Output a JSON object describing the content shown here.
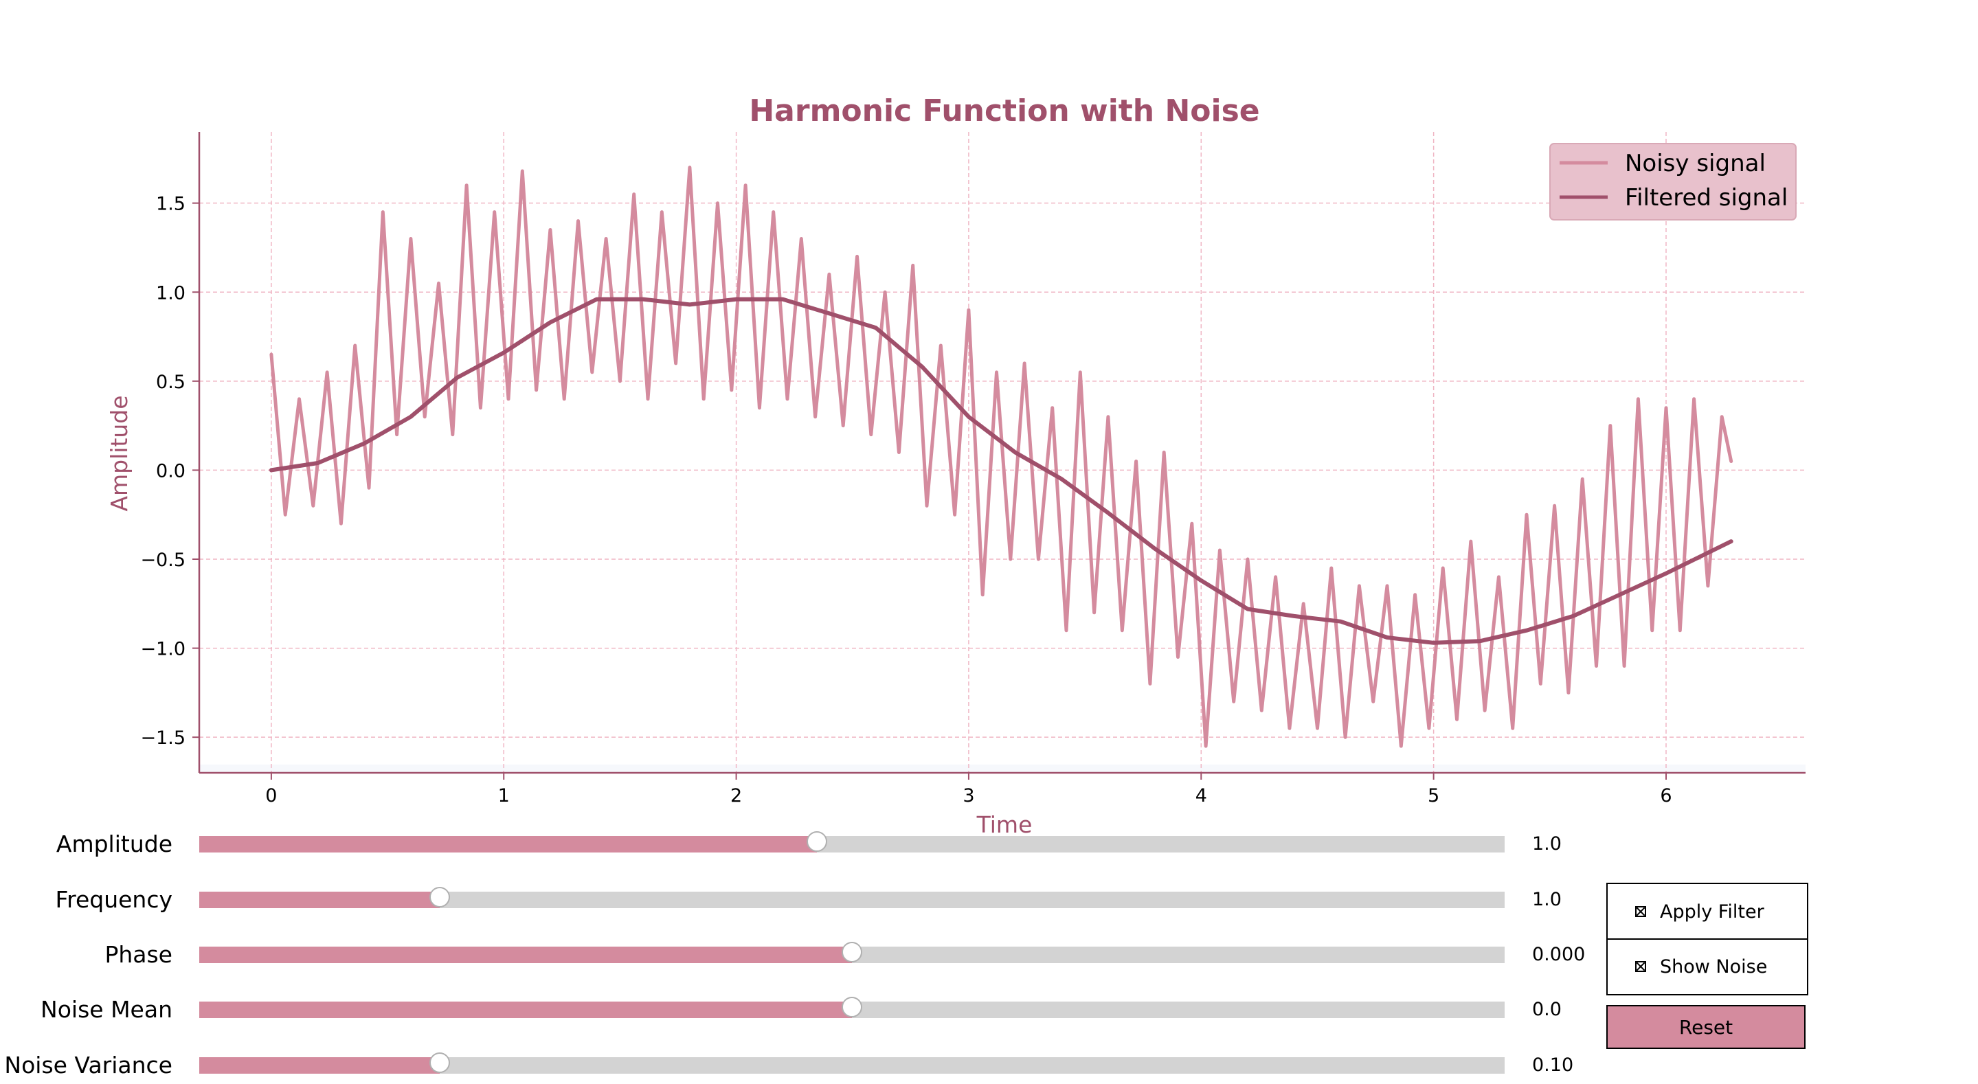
{
  "chart_data": {
    "type": "line",
    "title": "Harmonic Function with Noise",
    "xlabel": "Time",
    "ylabel": "Amplitude",
    "xlim": [
      -0.31,
      6.6
    ],
    "ylim": [
      -1.7,
      1.9
    ],
    "xticks": [
      0,
      1,
      2,
      3,
      4,
      5,
      6
    ],
    "xtick_labels": [
      "0",
      "1",
      "2",
      "3",
      "4",
      "5",
      "6"
    ],
    "yticks": [
      -1.5,
      -1.0,
      -0.5,
      0.0,
      0.5,
      1.0,
      1.5
    ],
    "ytick_labels": [
      "−1.5",
      "−1.0",
      "−0.5",
      "0.0",
      "0.5",
      "1.0",
      "1.5"
    ],
    "grid": true,
    "legend_position": "top-right",
    "series": [
      {
        "name": "Noisy signal",
        "color": "#d48b9e",
        "x": [
          0.0,
          0.06,
          0.12,
          0.18,
          0.24,
          0.3,
          0.36,
          0.42,
          0.48,
          0.54,
          0.6,
          0.66,
          0.72,
          0.78,
          0.84,
          0.9,
          0.96,
          1.02,
          1.08,
          1.14,
          1.2,
          1.26,
          1.32,
          1.38,
          1.44,
          1.5,
          1.56,
          1.62,
          1.68,
          1.74,
          1.8,
          1.86,
          1.92,
          1.98,
          2.04,
          2.1,
          2.16,
          2.22,
          2.28,
          2.34,
          2.4,
          2.46,
          2.52,
          2.58,
          2.64,
          2.7,
          2.76,
          2.82,
          2.88,
          2.94,
          3.0,
          3.06,
          3.12,
          3.18,
          3.24,
          3.3,
          3.36,
          3.42,
          3.48,
          3.54,
          3.6,
          3.66,
          3.72,
          3.78,
          3.84,
          3.9,
          3.96,
          4.02,
          4.08,
          4.14,
          4.2,
          4.26,
          4.32,
          4.38,
          4.44,
          4.5,
          4.56,
          4.62,
          4.68,
          4.74,
          4.8,
          4.86,
          4.92,
          4.98,
          5.04,
          5.1,
          5.16,
          5.22,
          5.28,
          5.34,
          5.4,
          5.46,
          5.52,
          5.58,
          5.64,
          5.7,
          5.76,
          5.82,
          5.88,
          5.94,
          6.0,
          6.06,
          6.12,
          6.18,
          6.24,
          6.28
        ],
        "y": [
          0.65,
          -0.25,
          0.4,
          -0.2,
          0.55,
          -0.3,
          0.7,
          -0.1,
          1.45,
          0.2,
          1.3,
          0.3,
          1.05,
          0.2,
          1.6,
          0.35,
          1.45,
          0.4,
          1.68,
          0.45,
          1.35,
          0.4,
          1.4,
          0.55,
          1.3,
          0.5,
          1.55,
          0.4,
          1.45,
          0.6,
          1.7,
          0.4,
          1.5,
          0.45,
          1.6,
          0.35,
          1.45,
          0.4,
          1.3,
          0.3,
          1.1,
          0.25,
          1.2,
          0.2,
          1.0,
          0.1,
          1.15,
          -0.2,
          0.7,
          -0.25,
          0.9,
          -0.7,
          0.55,
          -0.5,
          0.6,
          -0.5,
          0.35,
          -0.9,
          0.55,
          -0.8,
          0.3,
          -0.9,
          0.05,
          -1.2,
          0.1,
          -1.05,
          -0.3,
          -1.55,
          -0.45,
          -1.3,
          -0.5,
          -1.35,
          -0.6,
          -1.45,
          -0.75,
          -1.45,
          -0.55,
          -1.5,
          -0.65,
          -1.3,
          -0.65,
          -1.55,
          -0.7,
          -1.45,
          -0.55,
          -1.4,
          -0.4,
          -1.35,
          -0.6,
          -1.45,
          -0.25,
          -1.2,
          -0.2,
          -1.25,
          -0.05,
          -1.1,
          0.25,
          -1.1,
          0.4,
          -0.9,
          0.35,
          -0.9,
          0.4,
          -0.65,
          0.3,
          0.05
        ]
      },
      {
        "name": "Filtered signal",
        "color": "#a0506b",
        "x": [
          0.0,
          0.2,
          0.4,
          0.6,
          0.8,
          1.0,
          1.2,
          1.4,
          1.6,
          1.8,
          2.0,
          2.2,
          2.4,
          2.6,
          2.8,
          3.0,
          3.2,
          3.4,
          3.6,
          3.8,
          4.0,
          4.2,
          4.4,
          4.6,
          4.8,
          5.0,
          5.2,
          5.4,
          5.6,
          5.8,
          6.0,
          6.28
        ],
        "y": [
          0.0,
          0.04,
          0.15,
          0.3,
          0.52,
          0.66,
          0.83,
          0.96,
          0.96,
          0.93,
          0.96,
          0.96,
          0.88,
          0.8,
          0.58,
          0.3,
          0.1,
          -0.05,
          -0.24,
          -0.44,
          -0.62,
          -0.78,
          -0.82,
          -0.85,
          -0.94,
          -0.97,
          -0.96,
          -0.9,
          -0.82,
          -0.7,
          -0.58,
          -0.4
        ]
      }
    ]
  },
  "controls": {
    "sliders": [
      {
        "label": "Amplitude",
        "value_text": "1.0",
        "fraction": 0.473
      },
      {
        "label": "Frequency",
        "value_text": "1.0",
        "fraction": 0.184
      },
      {
        "label": "Phase",
        "value_text": "0.000",
        "fraction": 0.5
      },
      {
        "label": "Noise Mean",
        "value_text": "0.0",
        "fraction": 0.5
      },
      {
        "label": "Noise Variance",
        "value_text": "0.10",
        "fraction": 0.184
      }
    ],
    "checkboxes": [
      {
        "label": "Apply Filter",
        "checked": true
      },
      {
        "label": "Show Noise",
        "checked": true
      }
    ],
    "reset_label": "Reset"
  },
  "colors": {
    "accent": "#a0506b",
    "noisy": "#d48b9e",
    "grid": "#f0b6c4",
    "legend_bg": "#e8c1cc"
  }
}
